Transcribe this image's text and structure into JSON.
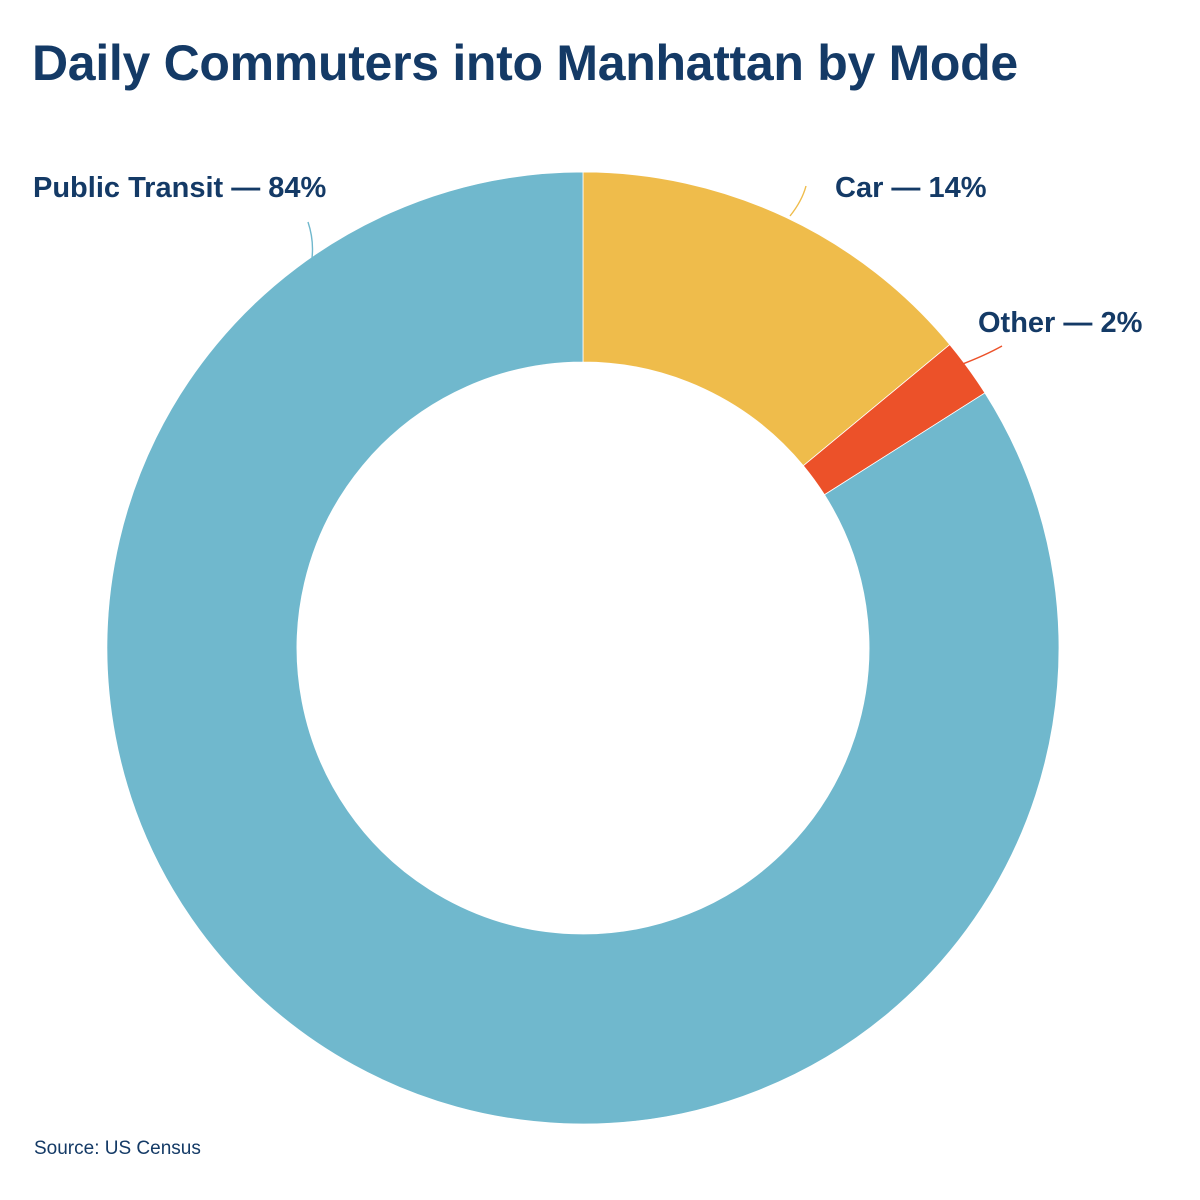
{
  "title": "Daily Commuters into Manhattan by Mode",
  "source": "Source: US Census",
  "chart_data": {
    "type": "pie",
    "variant": "donut",
    "title": "Daily Commuters into Manhattan by Mode",
    "start_angle_deg": 0,
    "direction": "clockwise",
    "legend": "none",
    "slices": [
      {
        "name": "Car",
        "value": 14,
        "label": "Car — 14%",
        "color": "#efbc4b"
      },
      {
        "name": "Other",
        "value": 2,
        "label": "Other — 2%",
        "color": "#ec5129"
      },
      {
        "name": "Public Transit",
        "value": 84,
        "label": "Public Transit — 84%",
        "color": "#70b8cd"
      }
    ]
  }
}
